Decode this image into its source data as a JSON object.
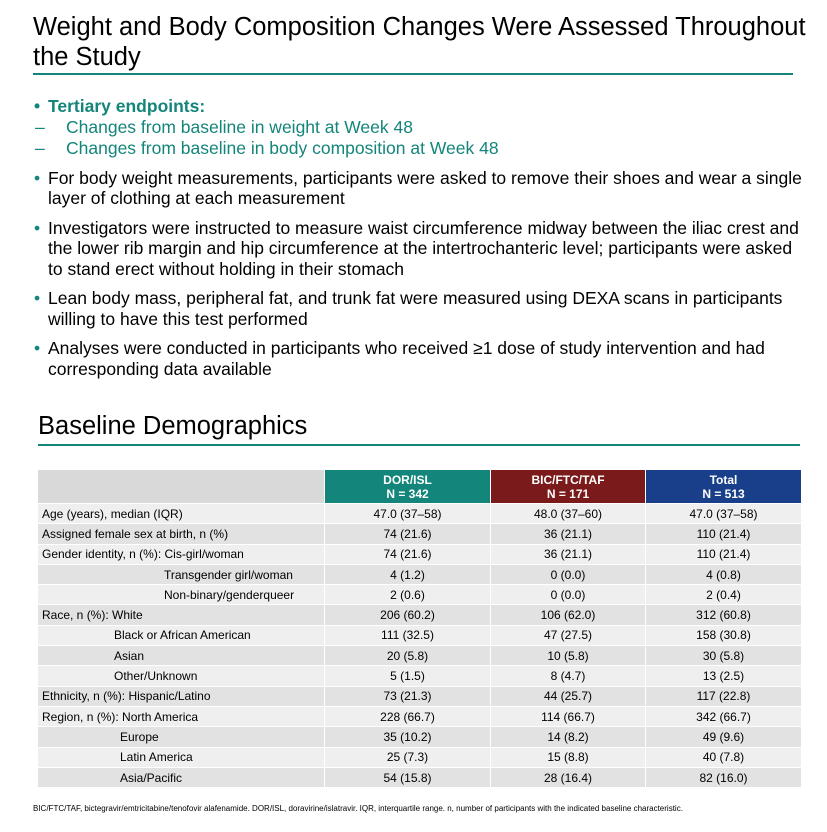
{
  "title": "Weight and Body Composition Changes Were Assessed Throughout the Study",
  "bullets": {
    "tertiary": {
      "label": "Tertiary endpoints:",
      "subs": [
        "Changes from baseline in weight at Week 48",
        "Changes from baseline in body composition at Week 48"
      ]
    },
    "items": [
      "For body weight measurements, participants were asked to remove their shoes and wear a single layer of clothing at each measurement",
      "Investigators were instructed to measure waist circumference midway between the iliac crest and the lower rib margin and hip circumference at the intertrochanteric level; participants were asked to stand erect without holding in their stomach",
      "Lean body mass, peripheral fat, and trunk fat were measured using DEXA scans in participants willing to have this test performed",
      "Analyses were conducted in participants who received ≥1 dose of study intervention and had corresponding data available"
    ]
  },
  "section_title": "Baseline Demographics",
  "table": {
    "headers": [
      {
        "name": "DOR/ISL",
        "n": "N = 342"
      },
      {
        "name": "BIC/FTC/TAF",
        "n": "N = 171"
      },
      {
        "name": "Total",
        "n": "N = 513"
      }
    ],
    "rows": [
      {
        "label": "Age (years), median (IQR)",
        "values": [
          "47.0 (37–58)",
          "48.0 (37–60)",
          "47.0 (37–58)"
        ]
      },
      {
        "label": "Assigned female sex at birth, n (%)",
        "values": [
          "74 (21.6)",
          "36 (21.1)",
          "110 (21.4)"
        ]
      },
      {
        "label": "Gender identity, n (%): Cis-girl/woman",
        "values": [
          "74 (21.6)",
          "36 (21.1)",
          "110 (21.4)"
        ]
      },
      {
        "label": "Transgender girl/woman",
        "values": [
          "4 (1.2)",
          "0 (0.0)",
          "4 (0.8)"
        ]
      },
      {
        "label": "Non-binary/genderqueer",
        "values": [
          "2 (0.6)",
          "0 (0.0)",
          "2 (0.4)"
        ]
      },
      {
        "label": "Race, n (%):  White",
        "values": [
          "206 (60.2)",
          "106 (62.0)",
          "312 (60.8)"
        ]
      },
      {
        "label": "Black or African American",
        "values": [
          "111 (32.5)",
          "47 (27.5)",
          "158 (30.8)"
        ]
      },
      {
        "label": "Asian",
        "values": [
          "20 (5.8)",
          "10 (5.8)",
          "30 (5.8)"
        ]
      },
      {
        "label": "Other/Unknown",
        "values": [
          "5 (1.5)",
          "8 (4.7)",
          "13 (2.5)"
        ]
      },
      {
        "label": "Ethnicity, n (%): Hispanic/Latino",
        "values": [
          "73 (21.3)",
          "44 (25.7)",
          "117 (22.8)"
        ]
      },
      {
        "label": "Region, n (%): North America",
        "values": [
          "228 (66.7)",
          "114 (66.7)",
          "342 (66.7)"
        ]
      },
      {
        "label": "Europe",
        "values": [
          "35 (10.2)",
          "14 (8.2)",
          "49 (9.6)"
        ]
      },
      {
        "label": "Latin America",
        "values": [
          "25 (7.3)",
          "15 (8.8)",
          "40 (7.8)"
        ]
      },
      {
        "label": "Asia/Pacific",
        "values": [
          "54 (15.8)",
          "28 (16.4)",
          "82 (16.0)"
        ]
      }
    ]
  },
  "footnote": "BIC/FTC/TAF, bictegravir/emtricitabine/tenofovir alafenamide. DOR/ISL, doravirine/islatravir. IQR, interquartile range. n, number of participants with the indicated baseline characteristic.",
  "colors": {
    "teal": "#14857a",
    "maroon": "#7b1a1a",
    "navy": "#1a3f8a"
  }
}
